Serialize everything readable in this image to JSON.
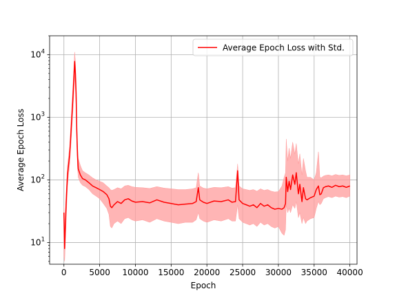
{
  "chart_data": {
    "type": "line",
    "title": "",
    "xlabel": "Epoch",
    "ylabel": "Average Epoch Loss",
    "xlim": [
      -2000,
      41000
    ],
    "ylim": [
      4.5,
      20000
    ],
    "yscale": "log",
    "grid": true,
    "legend_position": "top-right",
    "x_ticks": [
      0,
      5000,
      10000,
      15000,
      20000,
      25000,
      30000,
      35000,
      40000
    ],
    "x_tick_labels": [
      "0",
      "5000",
      "10000",
      "15000",
      "20000",
      "25000",
      "30000",
      "35000",
      "40000"
    ],
    "y_ticks": [
      10,
      100,
      1000,
      10000
    ],
    "y_tick_labels": [
      {
        "base": "10",
        "exp": "1"
      },
      {
        "base": "10",
        "exp": "2"
      },
      {
        "base": "10",
        "exp": "3"
      },
      {
        "base": "10",
        "exp": "4"
      }
    ],
    "series": [
      {
        "name": "Average Epoch Loss with Std.",
        "color": "#ff0000",
        "band_color": "#ff9c9c",
        "x": [
          0,
          100,
          300,
          500,
          800,
          1000,
          1300,
          1500,
          1600,
          1700,
          1800,
          1900,
          2000,
          2300,
          2600,
          3000,
          3500,
          4000,
          4500,
          5000,
          5500,
          6000,
          6300,
          6500,
          6700,
          7000,
          7500,
          8000,
          8500,
          9000,
          9500,
          10000,
          11000,
          12000,
          13000,
          14000,
          15000,
          16000,
          17000,
          18000,
          18500,
          18800,
          19000,
          19500,
          20000,
          21000,
          22000,
          23000,
          23500,
          24000,
          24300,
          24500,
          25000,
          25500,
          26000,
          26500,
          27000,
          27500,
          28000,
          28500,
          29000,
          29500,
          30000,
          30500,
          30800,
          31000,
          31100,
          31300,
          31500,
          31700,
          32000,
          32300,
          32500,
          32800,
          33000,
          33300,
          33500,
          33800,
          34000,
          34500,
          35000,
          35300,
          35600,
          35800,
          36000,
          36300,
          36600,
          37000,
          37500,
          38000,
          38500,
          39000,
          39500,
          40000
        ],
        "y": [
          30,
          8,
          40,
          120,
          250,
          600,
          2500,
          7800,
          5000,
          2500,
          600,
          250,
          150,
          120,
          105,
          100,
          90,
          80,
          75,
          70,
          65,
          58,
          50,
          38,
          36,
          40,
          45,
          42,
          48,
          50,
          46,
          44,
          45,
          43,
          48,
          44,
          42,
          40,
          41,
          42,
          45,
          75,
          48,
          44,
          42,
          46,
          45,
          48,
          44,
          45,
          140,
          48,
          42,
          40,
          38,
          40,
          36,
          42,
          38,
          40,
          36,
          34,
          35,
          34,
          36,
          42,
          110,
          65,
          95,
          70,
          120,
          85,
          130,
          60,
          85,
          45,
          75,
          50,
          48,
          52,
          55,
          70,
          80,
          58,
          60,
          75,
          78,
          80,
          76,
          82,
          78,
          80,
          76,
          80
        ],
        "std_lower": [
          6,
          5,
          20,
          80,
          180,
          400,
          1500,
          4500,
          3000,
          1500,
          350,
          160,
          110,
          90,
          82,
          78,
          70,
          60,
          55,
          50,
          42,
          35,
          28,
          18,
          17,
          20,
          22,
          20,
          24,
          25,
          23,
          22,
          23,
          21,
          24,
          22,
          21,
          20,
          21,
          21,
          23,
          30,
          24,
          22,
          21,
          23,
          22,
          24,
          22,
          22,
          40,
          24,
          21,
          20,
          19,
          20,
          18,
          21,
          19,
          20,
          18,
          17,
          18,
          14,
          13,
          16,
          40,
          30,
          35,
          30,
          40,
          35,
          45,
          25,
          30,
          20,
          25,
          20,
          22,
          24,
          25,
          35,
          45,
          40,
          42,
          50,
          52,
          54,
          52,
          55,
          53,
          54,
          52,
          55
        ],
        "std_upper": [
          38,
          12,
          60,
          170,
          340,
          900,
          3800,
          11000,
          8000,
          4000,
          900,
          380,
          220,
          170,
          140,
          130,
          120,
          108,
          100,
          95,
          90,
          80,
          75,
          70,
          68,
          70,
          75,
          72,
          80,
          82,
          78,
          76,
          75,
          73,
          78,
          74,
          72,
          70,
          70,
          72,
          75,
          130,
          80,
          74,
          72,
          76,
          75,
          78,
          74,
          75,
          180,
          80,
          72,
          70,
          68,
          70,
          66,
          72,
          68,
          70,
          66,
          64,
          65,
          80,
          110,
          130,
          450,
          200,
          320,
          220,
          400,
          260,
          380,
          180,
          260,
          120,
          220,
          140,
          110,
          110,
          100,
          130,
          280,
          110,
          108,
          115,
          118,
          120,
          116,
          122,
          118,
          120,
          116,
          120
        ]
      }
    ]
  }
}
